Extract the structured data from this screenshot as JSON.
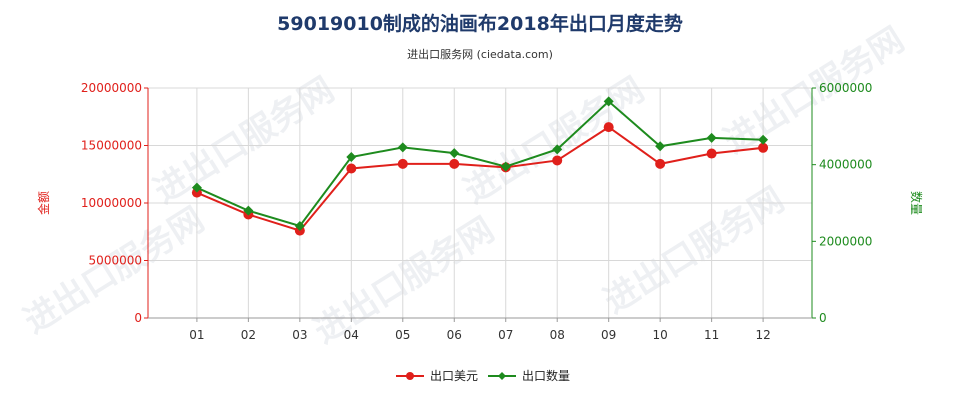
{
  "chart_data": {
    "type": "line",
    "title": "59019010制成的油画布2018年出口月度走势",
    "subtitle": "进出口服务网 (ciedata.com)",
    "categories": [
      "01",
      "02",
      "03",
      "04",
      "05",
      "06",
      "07",
      "08",
      "09",
      "10",
      "11",
      "12"
    ],
    "y_left": {
      "label": "金额",
      "range": [
        0,
        20000000
      ],
      "ticks": [
        "0",
        "5000000",
        "10000000",
        "15000000",
        "20000000"
      ]
    },
    "y_right": {
      "label": "数量",
      "range": [
        0,
        6000000
      ],
      "ticks": [
        "0",
        "2000000",
        "4000000",
        "6000000"
      ]
    },
    "series": [
      {
        "name": "出口美元",
        "axis": "left",
        "color": "#e0201b",
        "values": [
          10900000,
          9000000,
          7600000,
          13000000,
          13400000,
          13400000,
          13100000,
          13700000,
          16600000,
          13400000,
          14300000,
          14800000
        ]
      },
      {
        "name": "出口数量",
        "axis": "right",
        "color": "#1e8b1e",
        "values": [
          3400000,
          2800000,
          2400000,
          4200000,
          4450000,
          4300000,
          3950000,
          4400000,
          5650000,
          4480000,
          4700000,
          4650000
        ]
      }
    ],
    "grid": true,
    "legend": "bottom-center",
    "watermark": "进出口服务网"
  }
}
